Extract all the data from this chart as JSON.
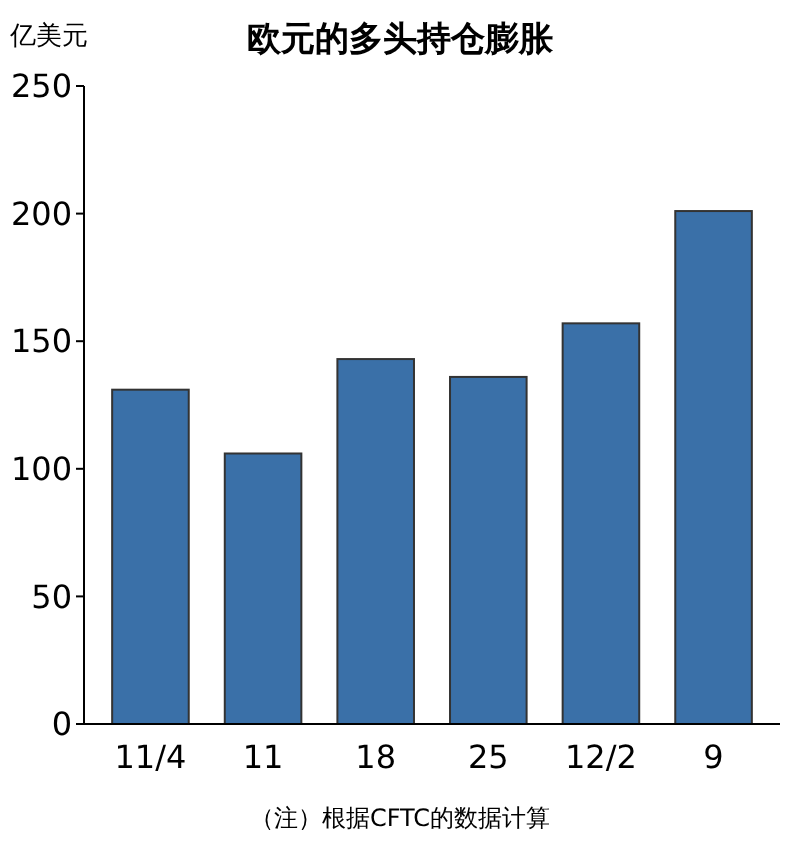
{
  "chart_data": {
    "type": "bar",
    "title": "欧元的多头持仓膨胀",
    "ylabel": "亿美元",
    "categories": [
      "11/4",
      "11",
      "18",
      "25",
      "12/2",
      "9"
    ],
    "values": [
      131,
      106,
      143,
      136,
      157,
      201
    ],
    "color": "#3a70a8",
    "ylim": [
      0,
      250
    ],
    "yticks": [
      0,
      50,
      100,
      150,
      200,
      250
    ],
    "grid": false,
    "annotations": [
      "（注）根据CFTC的数据计算"
    ]
  }
}
